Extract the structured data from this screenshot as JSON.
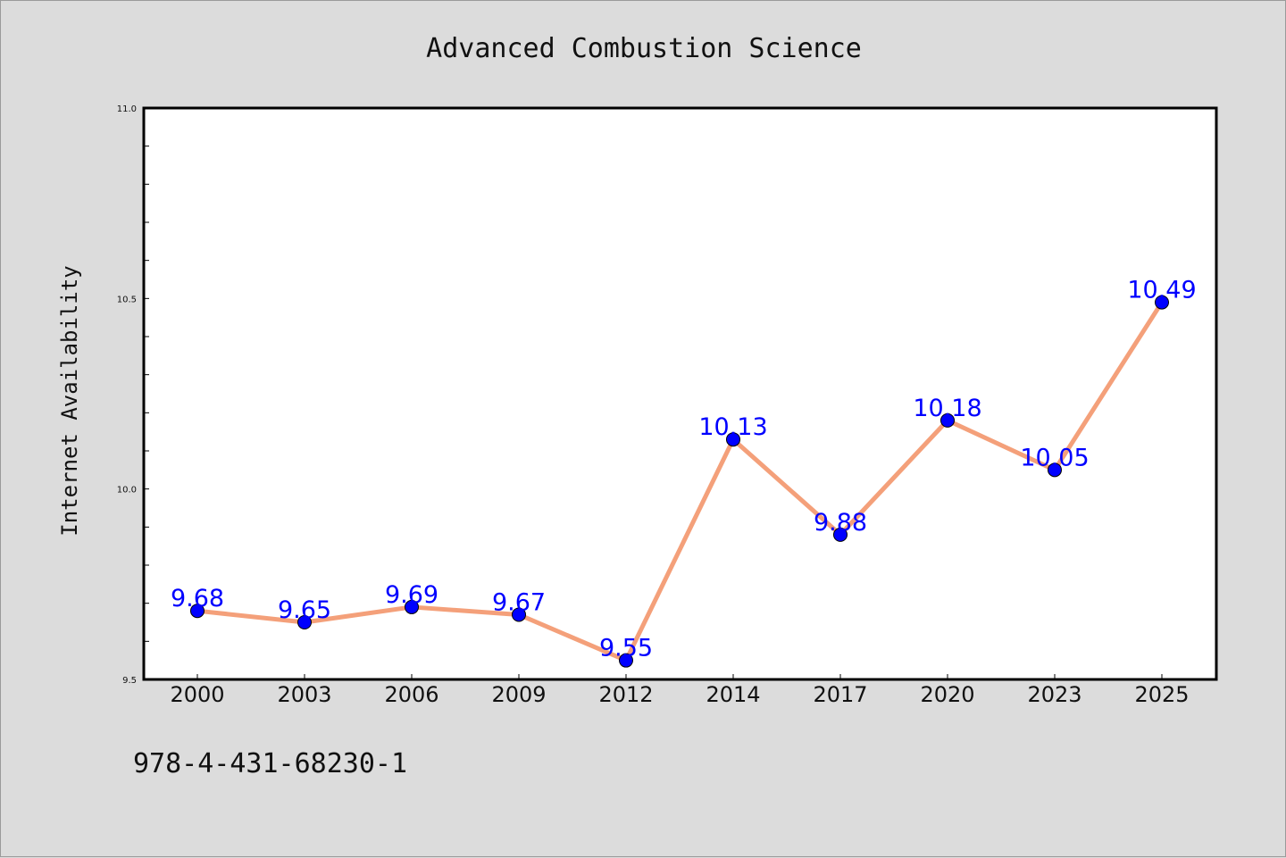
{
  "chart_data": {
    "type": "line",
    "title": "Advanced Combustion Science",
    "xlabel": "",
    "ylabel": "Internet Availability",
    "categories": [
      "2000",
      "2003",
      "2006",
      "2009",
      "2012",
      "2014",
      "2017",
      "2020",
      "2023",
      "2025"
    ],
    "series": [
      {
        "values": [
          9.68,
          9.65,
          9.69,
          9.67,
          9.55,
          10.13,
          9.88,
          10.18,
          10.05,
          10.49
        ],
        "data_labels": [
          "9.68",
          "9.65",
          "9.69",
          "9.67",
          "9.55",
          "10.13",
          "9.88",
          "10.18",
          "10.05",
          "10.49"
        ],
        "line_color": "#f4a07a",
        "marker_color": "#0000ff",
        "label_color": "#0000ff"
      }
    ],
    "ylim": [
      9.5,
      11.0
    ],
    "yticks": [
      "9.5",
      "10.0",
      "10.5",
      "11.0"
    ],
    "grid": false,
    "legend": "none"
  },
  "footer_text": "978-4-431-68230-1",
  "colors": {
    "background": "#dcdcdc",
    "plot_background": "#ffffff"
  }
}
